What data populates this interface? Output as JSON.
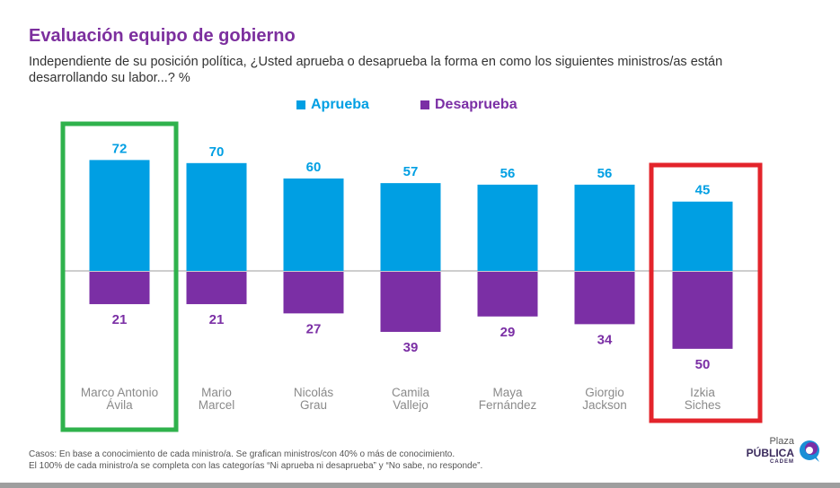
{
  "header": {
    "title": "Evaluación equipo de gobierno",
    "subtitle": "Independiente de su posición política, ¿Usted aprueba o desaprueba la forma en como los siguientes ministros/as están desarrollando su labor...? %"
  },
  "legend": {
    "approve": "Aprueba",
    "disapprove": "Desaprueba"
  },
  "colors": {
    "approve": "#009fe3",
    "disapprove": "#7b2fa5",
    "title": "#7c2f9e",
    "highlight_best": "#2fb24c",
    "highlight_worst": "#e3242b"
  },
  "chart_data": {
    "type": "bar",
    "categories": [
      [
        "Marco Antonio",
        "Ávila"
      ],
      [
        "Mario",
        "Marcel"
      ],
      [
        "Nicolás",
        "Grau"
      ],
      [
        "Camila",
        "Vallejo"
      ],
      [
        "Maya",
        "Fernández"
      ],
      [
        "Giorgio",
        "Jackson"
      ],
      [
        "Izkia",
        "Siches"
      ]
    ],
    "series": [
      {
        "name": "Aprueba",
        "values": [
          72,
          70,
          60,
          57,
          56,
          56,
          45
        ]
      },
      {
        "name": "Desaprueba",
        "values": [
          21,
          21,
          27,
          39,
          29,
          34,
          50
        ]
      }
    ],
    "highlights": {
      "best": 0,
      "worst": 6
    }
  },
  "footnote": {
    "line1": "Casos: En base a conocimiento de cada ministro/a. Se grafican ministros/con 40% o más de conocimiento.",
    "line2": "El 100% de cada ministro/a se completa con las categorías “Ni aprueba ni desaprueba” y “No sabe, no responde”."
  },
  "logo": {
    "line1": "Plaza",
    "line2": "PÚBLICA",
    "line3": "CADEM",
    "icon": "speech-bubble-icon"
  }
}
